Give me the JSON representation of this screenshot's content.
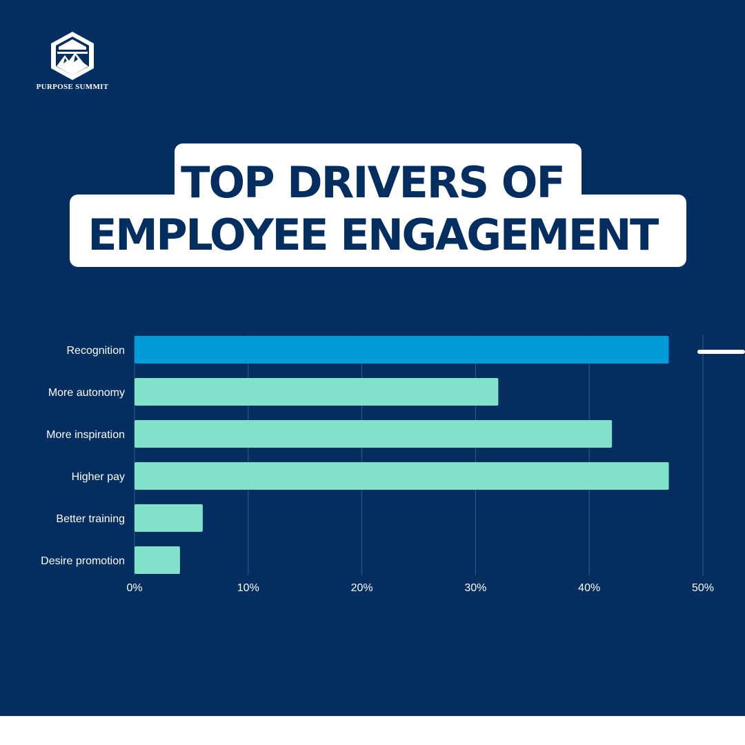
{
  "brand": {
    "name": "PURPOSE SUMMIT"
  },
  "title": {
    "line1": "TOP DRIVERS OF",
    "line2": "EMPLOYEE ENGAGEMENT"
  },
  "colors": {
    "background": "#042e5f",
    "highlight": "#009cd8",
    "bar": "#82e2c9",
    "title_text": "#042e5f"
  },
  "chart_data": {
    "type": "bar",
    "orientation": "horizontal",
    "categories": [
      "Recognition",
      "More autonomy",
      "More inspiration",
      "Higher pay",
      "Better training",
      "Desire promotion"
    ],
    "values": [
      47,
      32,
      42,
      47,
      6,
      4
    ],
    "highlight": "Recognition",
    "xlim": [
      0,
      50
    ],
    "xticks": [
      "0%",
      "10%",
      "20%",
      "30%",
      "40%",
      "50%"
    ],
    "grid": "vertical",
    "title": "",
    "xlabel": "",
    "ylabel": ""
  }
}
